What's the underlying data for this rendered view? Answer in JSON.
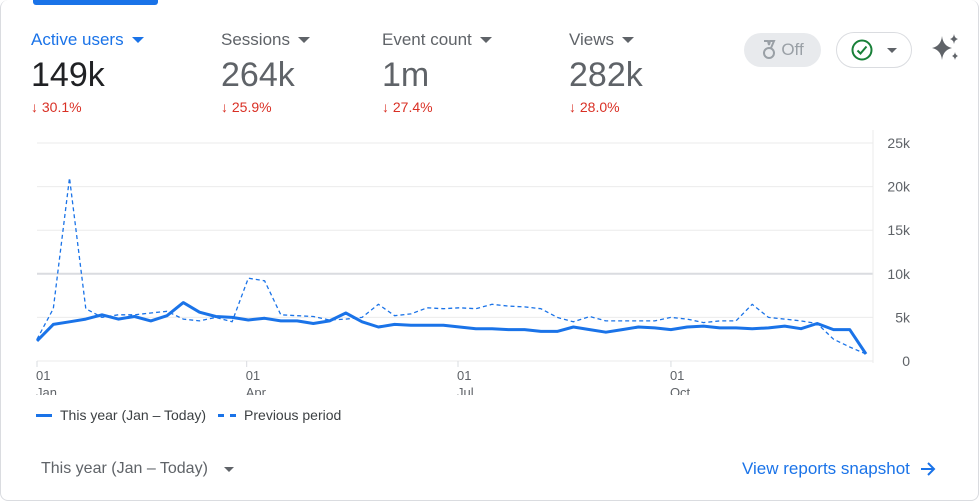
{
  "metrics": [
    {
      "label": "Active users",
      "value": "149k",
      "change": "30.1%",
      "active": true
    },
    {
      "label": "Sessions",
      "value": "264k",
      "change": "25.9%"
    },
    {
      "label": "Event count",
      "value": "1m",
      "change": "27.4%"
    },
    {
      "label": "Views",
      "value": "282k",
      "change": "28.0%"
    }
  ],
  "toolbar": {
    "off_label": "Off"
  },
  "colors": {
    "accent": "#1a73e8",
    "negative": "#d93025",
    "check": "#188038"
  },
  "chart_data": {
    "type": "line",
    "ylim": [
      0,
      25000
    ],
    "yticks": [
      "0",
      "5k",
      "10k",
      "15k",
      "20k",
      "25k"
    ],
    "xticks": [
      {
        "day": "01",
        "month": "Jan",
        "week": 0
      },
      {
        "day": "01",
        "month": "Apr",
        "week": 12.9
      },
      {
        "day": "01",
        "month": "Jul",
        "week": 25.9
      },
      {
        "day": "01",
        "month": "Oct",
        "week": 39
      }
    ],
    "series": [
      {
        "name": "This year (Jan – Today)",
        "style": "solid",
        "values": [
          2.3,
          4.2,
          4.5,
          4.8,
          5.3,
          4.8,
          5.1,
          4.6,
          5.2,
          6.7,
          5.6,
          5.1,
          5.0,
          4.7,
          4.9,
          4.6,
          4.6,
          4.3,
          4.6,
          5.5,
          4.5,
          3.9,
          4.2,
          4.1,
          4.1,
          4.1,
          3.9,
          3.7,
          3.7,
          3.6,
          3.6,
          3.4,
          3.4,
          3.9,
          3.6,
          3.3,
          3.6,
          3.9,
          3.8,
          3.6,
          3.9,
          4.0,
          3.8,
          3.8,
          3.7,
          3.8,
          4.0,
          3.7,
          4.3,
          3.6,
          3.6,
          0.8
        ]
      },
      {
        "name": "Previous period",
        "style": "dashed",
        "values": [
          2.5,
          6,
          21,
          6,
          5,
          5.3,
          5.3,
          5.5,
          5.7,
          4.8,
          4.6,
          5.0,
          4.5,
          9.5,
          9.2,
          5.3,
          5.2,
          5.1,
          4.7,
          4.8,
          5.0,
          6.5,
          5.2,
          5.4,
          6.1,
          6.0,
          6.1,
          6.0,
          6.5,
          6.3,
          6.2,
          6.0,
          5.0,
          4.5,
          5.1,
          4.6,
          4.6,
          4.6,
          4.6,
          5.0,
          4.8,
          4.4,
          4.6,
          4.6,
          6.5,
          5.0,
          4.8,
          4.6,
          4.3,
          2.5,
          1.6,
          0.8
        ]
      }
    ],
    "value_unit": "thousands"
  },
  "footer": {
    "date_range": "This year (Jan – Today)",
    "link": "View reports snapshot"
  }
}
